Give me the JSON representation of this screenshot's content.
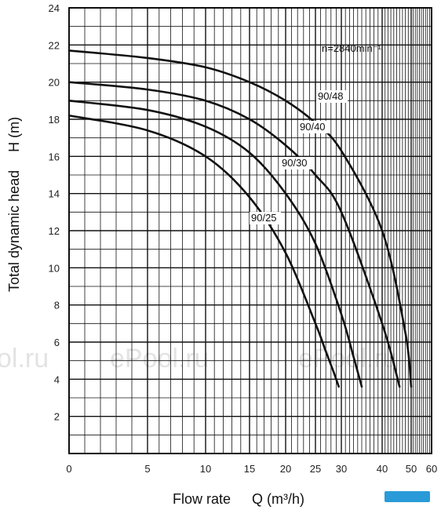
{
  "chart_data": {
    "type": "line",
    "xlabel_text": "Flow rate",
    "xlabel_quantity": "Q (m³/h)",
    "ylabel_text": "Total dynamic head",
    "ylabel_quantity": "H (m)",
    "speed_annotation": "n=2840min⁻¹",
    "x_ticks": [
      0,
      5,
      10,
      15,
      20,
      25,
      30,
      40,
      50,
      60
    ],
    "y_ticks": [
      2,
      4,
      6,
      8,
      10,
      12,
      14,
      16,
      18,
      20,
      22,
      24
    ],
    "ylim": [
      0,
      24
    ],
    "x_scale": "non-linear (compressed above 30)",
    "grid": true,
    "series": [
      {
        "name": "90/25",
        "x": [
          0,
          5,
          10,
          15,
          20,
          25,
          27,
          28.5,
          29.5
        ],
        "y": [
          18.2,
          17.4,
          16.0,
          13.8,
          10.8,
          7.0,
          5.5,
          4.4,
          3.6
        ]
      },
      {
        "name": "90/30",
        "x": [
          0,
          5,
          10,
          15,
          20,
          25,
          30,
          33,
          35
        ],
        "y": [
          19.0,
          18.5,
          17.6,
          16.2,
          14.0,
          11.3,
          7.5,
          5.2,
          3.6
        ]
      },
      {
        "name": "90/40",
        "x": [
          0,
          5,
          10,
          15,
          20,
          25,
          30,
          40,
          46
        ],
        "y": [
          20.0,
          19.6,
          19.0,
          18.0,
          16.6,
          15.0,
          13.0,
          7.0,
          3.6
        ]
      },
      {
        "name": "90/48",
        "x": [
          0,
          5,
          10,
          15,
          20,
          25,
          30,
          40,
          48,
          50
        ],
        "y": [
          21.7,
          21.3,
          20.8,
          20.0,
          19.0,
          17.8,
          16.3,
          12.0,
          6.5,
          3.6
        ]
      }
    ],
    "watermarks": [
      "ol.ru",
      "ePool.ru",
      "ePool.ru"
    ]
  }
}
